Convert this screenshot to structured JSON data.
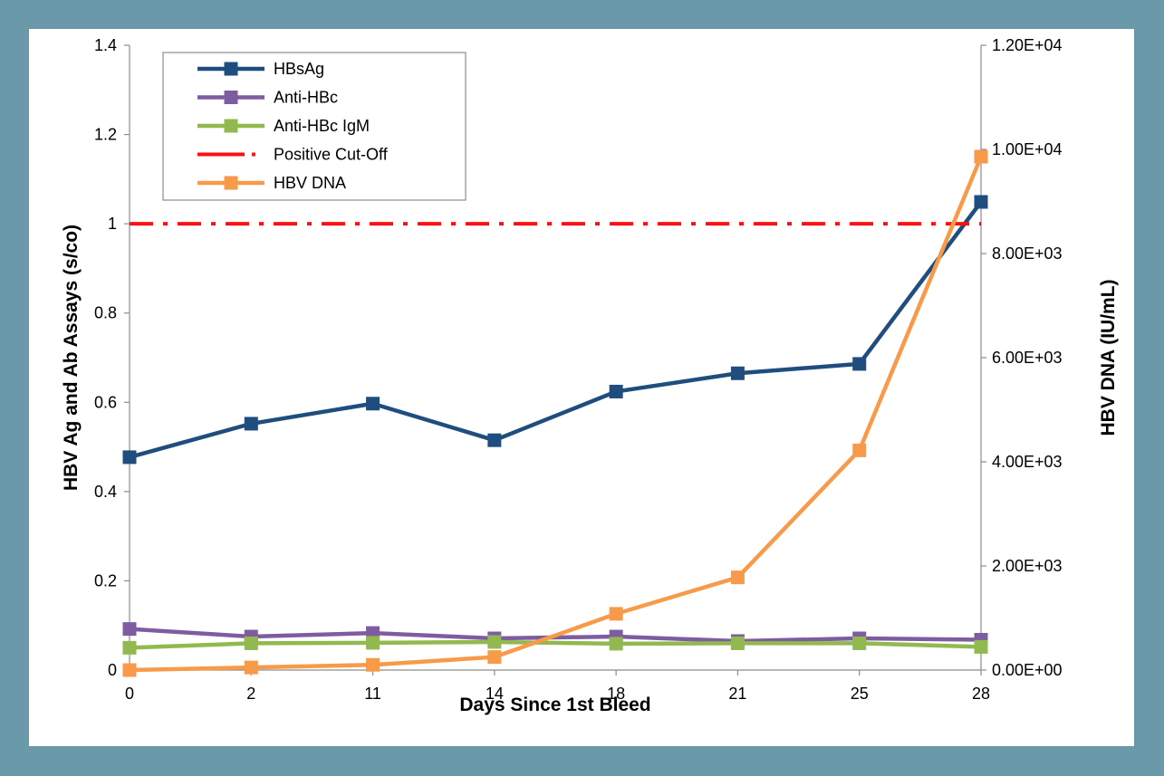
{
  "chart_data": {
    "type": "line",
    "categories": [
      "0",
      "2",
      "11",
      "14",
      "18",
      "21",
      "25",
      "28"
    ],
    "xlabel": "Days Since 1st Bleed",
    "ylabel": "HBV Ag and Ab Assays  (s/co)",
    "y2label": "HBV DNA (IU/mL)",
    "ylim": [
      0,
      1.4
    ],
    "yticks": [
      "0",
      "0.2",
      "0.4",
      "0.6",
      "0.8",
      "1",
      "1.2",
      "1.4"
    ],
    "y2lim": [
      0,
      12000
    ],
    "y2ticks": [
      "0.00E+00",
      "2.00E+03",
      "4.00E+03",
      "6.00E+03",
      "8.00E+03",
      "1.00E+04",
      "1.20E+04"
    ],
    "grid": false,
    "legend_position": "top-left",
    "series": [
      {
        "name": "HBsAg",
        "axis": "left",
        "color": "#1f4e7e",
        "marker": "square",
        "values": [
          0.477,
          0.552,
          0.597,
          0.515,
          0.624,
          0.665,
          0.686,
          1.049
        ]
      },
      {
        "name": "Anti-HBc",
        "axis": "left",
        "color": "#7e5ca0",
        "marker": "square",
        "values": [
          0.092,
          0.075,
          0.083,
          0.071,
          0.075,
          0.065,
          0.071,
          0.068
        ]
      },
      {
        "name": "Anti-HBc IgM",
        "axis": "left",
        "color": "#92b850",
        "marker": "square",
        "values": [
          0.05,
          0.06,
          0.061,
          0.063,
          0.059,
          0.06,
          0.06,
          0.052
        ]
      },
      {
        "name": "Positive Cut-Off",
        "axis": "left",
        "color": "#ff1010",
        "style": "dash-dot",
        "values": [
          1,
          1,
          1,
          1,
          1,
          1,
          1,
          1
        ]
      },
      {
        "name": "HBV DNA",
        "axis": "right",
        "color": "#f79a4a",
        "marker": "square",
        "values": [
          0,
          50,
          100,
          250,
          1080,
          1780,
          4220,
          9860
        ]
      }
    ]
  }
}
